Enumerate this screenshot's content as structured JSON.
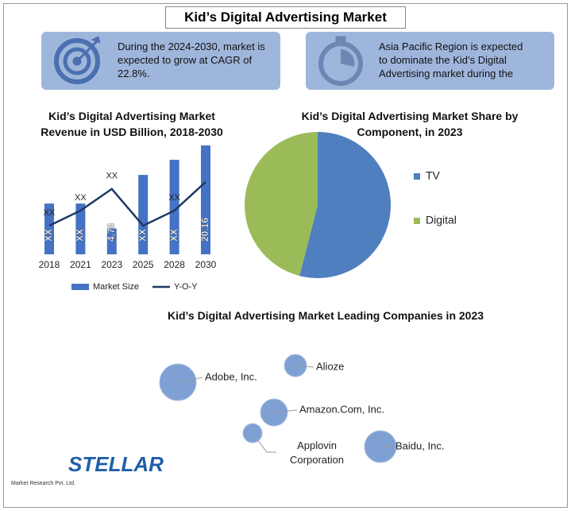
{
  "header": {
    "title": "Kid’s Digital Advertising Market"
  },
  "callouts": [
    {
      "text": "During the 2024-2030, market is expected to grow at CAGR of 22.8%."
    },
    {
      "text": "Asia Pacific Region is expected to dominate the Kid’s Digital Advertising market during the"
    }
  ],
  "chart_data": [
    {
      "type": "bar",
      "title": "Kid’s Digital Advertising Market Revenue in USD Billion, 2018-2030",
      "categories": [
        "2018",
        "2021",
        "2023",
        "2025",
        "2028",
        "2030"
      ],
      "series": [
        {
          "name": "Market Size",
          "type": "bar",
          "color": "#4472c4",
          "values": [
            9.4,
            9.4,
            4.78,
            14.7,
            17.5,
            20.16
          ],
          "value_labels": [
            "XX",
            "XX",
            "4.78",
            "XX",
            "XX",
            "20.16"
          ]
        },
        {
          "name": "Y-O-Y",
          "type": "line",
          "color": "#1f3864",
          "values": [
            5.3,
            8.1,
            12.1,
            5.3,
            8.1,
            13.4
          ],
          "value_labels": [
            "XX",
            "XX",
            "XX",
            null,
            "XX",
            null
          ]
        }
      ]
    },
    {
      "type": "pie",
      "title": "Kid’s Digital Advertising Market Share by Component, in 2023",
      "categories": [
        "TV",
        "Digital"
      ],
      "values": [
        54,
        46
      ],
      "colors": [
        "#4f7fbf",
        "#9bbb59"
      ]
    },
    {
      "type": "bubble",
      "title": "Kid’s Digital Advertising Market Leading Companies in 2023",
      "categories": [
        "Adobe, Inc.",
        "Alioze",
        "Amazon.Com, Inc.",
        "Applovin Corporation",
        "Baidu, Inc."
      ],
      "values": [
        23,
        14,
        17,
        12,
        20
      ],
      "color": "#7ea0d3"
    }
  ],
  "logo": {
    "name": "STELLAR",
    "tagline": "Market Research Pvt. Ltd."
  }
}
